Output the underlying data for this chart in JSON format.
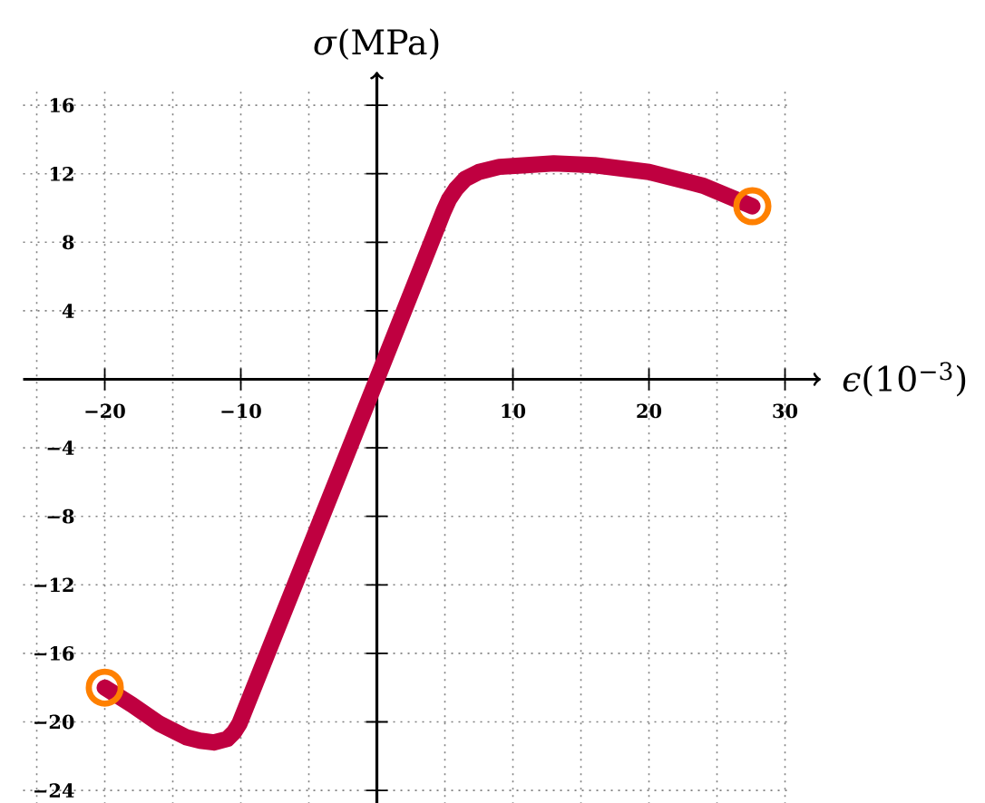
{
  "chart_data": {
    "type": "line",
    "xlabel": "*ϵ*(10$^{−3}$)",
    "ylabel": "*σ*(MPa)",
    "xlim": [
      -26,
      30.5
    ],
    "ylim": [
      -24.8,
      17
    ],
    "xticks": [
      {
        "value": -25,
        "label": null
      },
      {
        "value": -20,
        "label": "−20"
      },
      {
        "value": -15,
        "label": null
      },
      {
        "value": -10,
        "label": "−10"
      },
      {
        "value": -5,
        "label": null
      },
      {
        "value": 5,
        "label": null
      },
      10,
      {
        "value": 15,
        "label": null
      },
      20,
      {
        "value": 25,
        "label": null
      },
      30
    ],
    "yticks": [
      {
        "value": -24,
        "label": "−24"
      },
      {
        "value": -20,
        "label": "−20"
      },
      {
        "value": -16,
        "label": "−16"
      },
      {
        "value": -12,
        "label": "−12"
      },
      {
        "value": -8,
        "label": "−8"
      },
      {
        "value": -4,
        "label": "−4"
      },
      4,
      8,
      12,
      16
    ],
    "grid": true,
    "series": [
      {
        "color": "#bf0040",
        "x": [
          -20,
          -18,
          -16,
          -14,
          -13,
          -12,
          -11,
          -10.5,
          -10.1,
          0,
          4.9,
          5.3,
          5.8,
          6.5,
          7.5,
          9,
          11,
          13,
          16,
          20,
          24,
          27.6
        ],
        "values": [
          -18,
          -19,
          -20.1,
          -20.9,
          -21.1,
          -21.2,
          -21,
          -20.6,
          -20.1,
          0,
          9.8,
          10.5,
          11.1,
          11.7,
          12.1,
          12.4,
          12.5,
          12.6,
          12.5,
          12.1,
          11.3,
          10.1
        ]
      },
      {
        "type": "scatter",
        "color": "#ff8000",
        "marker": "circle",
        "x": [
          -20,
          27.6
        ],
        "values": [
          -18,
          10.1
        ]
      }
    ]
  }
}
